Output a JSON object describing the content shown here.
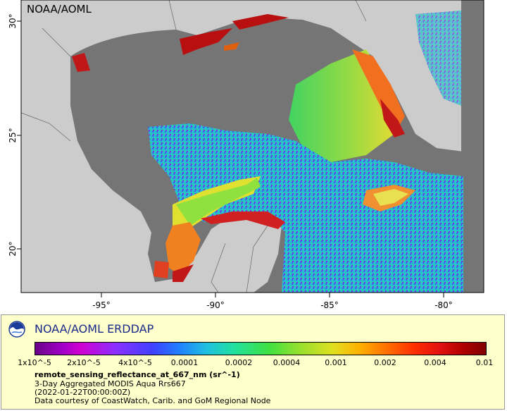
{
  "map": {
    "watermark": "NOAA/AOML",
    "lon_ticks": [
      "-95°",
      "-90°",
      "-85°",
      "-80°"
    ],
    "lat_ticks": [
      "30°",
      "25°",
      "20°"
    ],
    "colors": {
      "ocean_nodata": "#757575",
      "land": "#cccccc",
      "border": "#666666"
    }
  },
  "legend": {
    "brand": "NOAA/AOML ERDDAP",
    "colorbar_labels": [
      "1x10^-5",
      "2x10^-5",
      "4x10^-5",
      "0.0001",
      "0.0002",
      "0.0004",
      "0.001",
      "0.002",
      "0.004",
      "0.01"
    ],
    "variable": "remote_sensing_reflectance_at_667_nm (sr^-1)",
    "dataset": "3-Day Aggregated MODIS Aqua Rrs667",
    "time": "(2022-01-22T00:00:00Z)",
    "credit": "Data courtesy of CoastWatch, Carib. and GoM Regional Node"
  }
}
